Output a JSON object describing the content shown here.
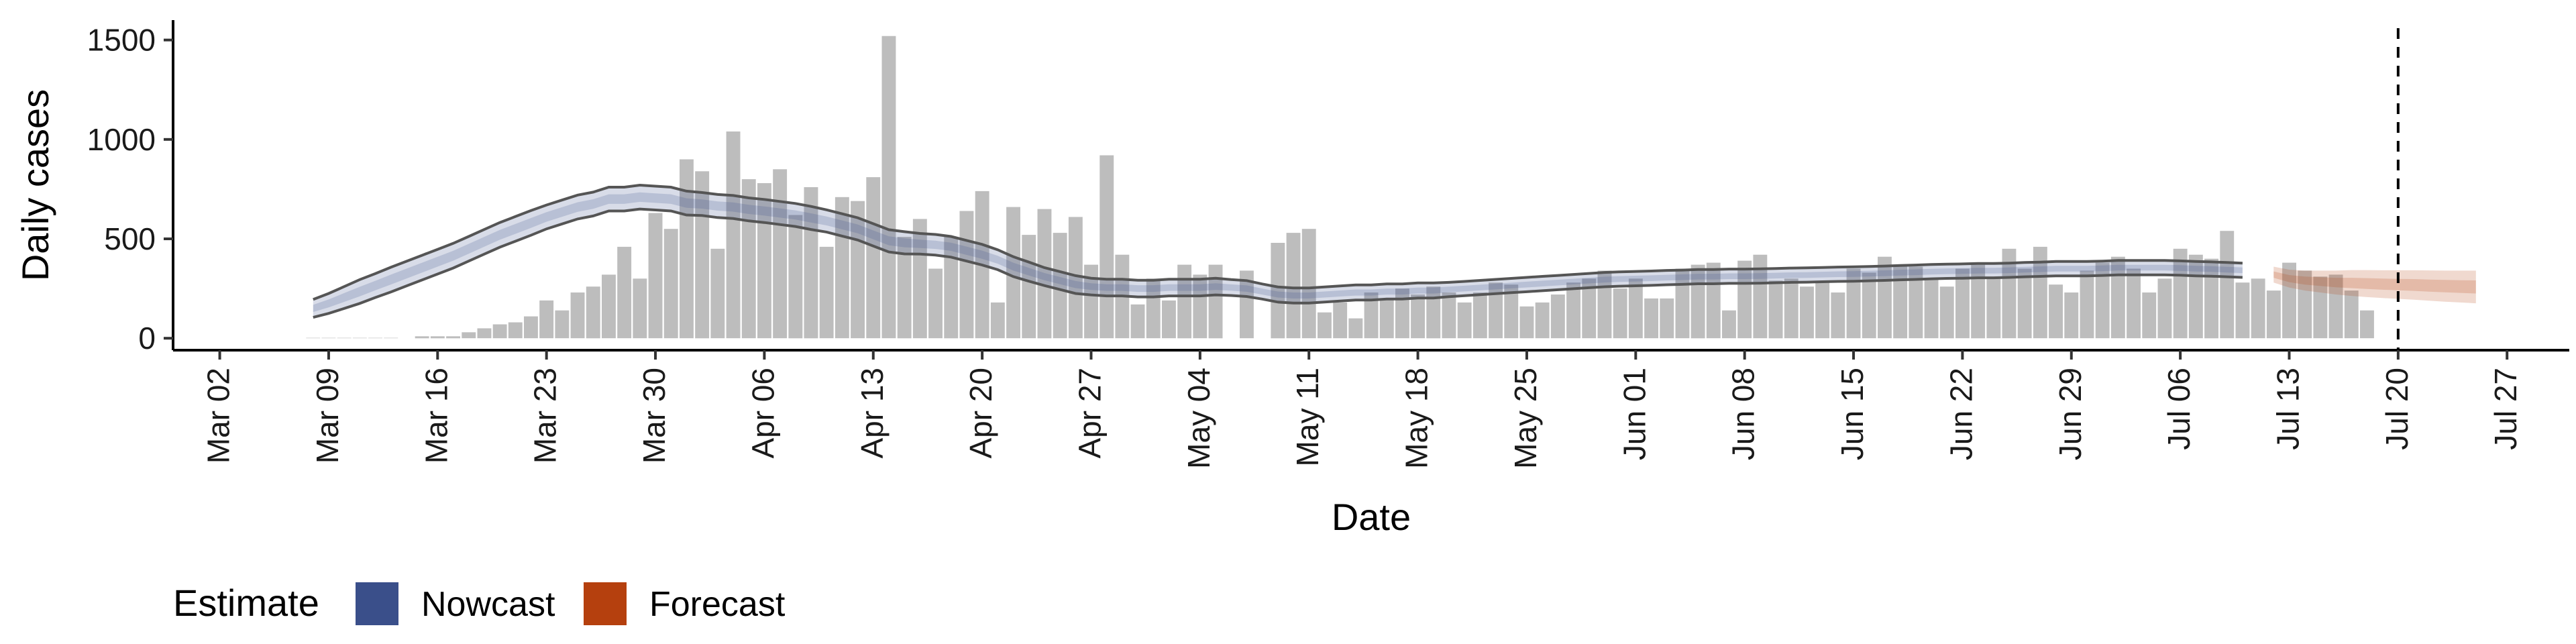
{
  "chart_data": {
    "type": "bar",
    "xlabel": "Date",
    "ylabel": "Daily cases",
    "x_range": [
      "2020-02-28",
      "2020-07-31"
    ],
    "ylim": [
      -60,
      1600
    ],
    "y_ticks": [
      0,
      500,
      1000,
      1500
    ],
    "x_ticks": [
      {
        "date": "2020-03-02",
        "label": "Mar 02"
      },
      {
        "date": "2020-03-09",
        "label": "Mar 09"
      },
      {
        "date": "2020-03-16",
        "label": "Mar 16"
      },
      {
        "date": "2020-03-23",
        "label": "Mar 23"
      },
      {
        "date": "2020-03-30",
        "label": "Mar 30"
      },
      {
        "date": "2020-04-06",
        "label": "Apr 06"
      },
      {
        "date": "2020-04-13",
        "label": "Apr 13"
      },
      {
        "date": "2020-04-20",
        "label": "Apr 20"
      },
      {
        "date": "2020-04-27",
        "label": "Apr 27"
      },
      {
        "date": "2020-05-04",
        "label": "May 04"
      },
      {
        "date": "2020-05-11",
        "label": "May 11"
      },
      {
        "date": "2020-05-18",
        "label": "May 18"
      },
      {
        "date": "2020-05-25",
        "label": "May 25"
      },
      {
        "date": "2020-06-01",
        "label": "Jun 01"
      },
      {
        "date": "2020-06-08",
        "label": "Jun 08"
      },
      {
        "date": "2020-06-15",
        "label": "Jun 15"
      },
      {
        "date": "2020-06-22",
        "label": "Jun 22"
      },
      {
        "date": "2020-06-29",
        "label": "Jun 29"
      },
      {
        "date": "2020-07-06",
        "label": "Jul 06"
      },
      {
        "date": "2020-07-13",
        "label": "Jul 13"
      },
      {
        "date": "2020-07-20",
        "label": "Jul 20"
      },
      {
        "date": "2020-07-27",
        "label": "Jul 27"
      }
    ],
    "observed_cases": {
      "start_date": "2020-03-08",
      "bar_color": "#bdbdbd",
      "values": [
        2,
        2,
        2,
        2,
        2,
        2,
        0,
        10,
        10,
        10,
        30,
        50,
        70,
        80,
        110,
        190,
        140,
        230,
        260,
        320,
        460,
        300,
        630,
        550,
        900,
        840,
        450,
        1040,
        800,
        780,
        850,
        620,
        760,
        460,
        710,
        690,
        810,
        1520,
        510,
        600,
        350,
        510,
        640,
        740,
        180,
        660,
        520,
        650,
        530,
        610,
        370,
        920,
        420,
        170,
        300,
        190,
        370,
        320,
        370,
        0,
        340,
        0,
        480,
        530,
        550,
        130,
        180,
        100,
        230,
        200,
        250,
        220,
        260,
        230,
        180,
        230,
        280,
        270,
        160,
        180,
        220,
        280,
        300,
        340,
        250,
        300,
        200,
        200,
        350,
        370,
        380,
        140,
        390,
        420,
        290,
        300,
        260,
        280,
        230,
        350,
        330,
        410,
        370,
        360,
        300,
        260,
        350,
        370,
        300,
        450,
        350,
        460,
        270,
        230,
        340,
        380,
        410,
        350,
        230,
        300,
        450,
        420,
        400,
        540,
        280,
        300,
        240,
        380,
        340,
        310,
        320,
        240,
        140
      ]
    },
    "series": [
      {
        "name": "Nowcast",
        "color": "#3a4f8a",
        "start_date": "2020-03-08",
        "median": [
          150,
          175,
          205,
          235,
          265,
          295,
          325,
          355,
          385,
          415,
          450,
          485,
          520,
          550,
          580,
          610,
          635,
          660,
          675,
          700,
          700,
          710,
          705,
          700,
          680,
          675,
          665,
          660,
          648,
          640,
          630,
          620,
          605,
          590,
          570,
          550,
          520,
          490,
          480,
          475,
          470,
          460,
          440,
          420,
          395,
          360,
          335,
          310,
          290,
          270,
          260,
          255,
          255,
          250,
          250,
          255,
          255,
          255,
          260,
          255,
          250,
          235,
          220,
          215,
          215,
          220,
          225,
          230,
          230,
          235,
          235,
          240,
          240,
          245,
          250,
          255,
          260,
          265,
          270,
          275,
          280,
          285,
          290,
          295,
          298,
          300,
          302,
          305,
          307,
          310,
          310,
          312,
          312,
          313,
          315,
          317,
          318,
          320,
          322,
          323,
          325,
          327,
          330,
          332,
          335,
          337,
          338,
          340,
          340,
          342,
          345,
          347,
          350,
          350,
          350,
          352,
          355,
          355,
          355,
          355,
          353,
          350,
          348,
          345,
          342
        ],
        "band_half_width": [
          45,
          50,
          55,
          60,
          60,
          62,
          62,
          62,
          62,
          62,
          62,
          62,
          62,
          62,
          62,
          60,
          60,
          60,
          60,
          60,
          60,
          60,
          60,
          60,
          60,
          58,
          58,
          58,
          58,
          58,
          58,
          58,
          58,
          56,
          56,
          56,
          56,
          56,
          56,
          52,
          52,
          52,
          52,
          52,
          50,
          50,
          48,
          45,
          45,
          45,
          42,
          42,
          42,
          42,
          42,
          42,
          42,
          42,
          42,
          40,
          40,
          38,
          38,
          38,
          38,
          38,
          38,
          38,
          38,
          38,
          38,
          38,
          38,
          36,
          36,
          36,
          36,
          36,
          36,
          36,
          36,
          36,
          36,
          36,
          36,
          36,
          36,
          36,
          36,
          36,
          36,
          36,
          36,
          36,
          36,
          36,
          36,
          36,
          36,
          36,
          36,
          36,
          36,
          36,
          36,
          36,
          36,
          36,
          36,
          36,
          36,
          36,
          36,
          36,
          36,
          36,
          36,
          36,
          36,
          36,
          36,
          36,
          36,
          36,
          36
        ]
      },
      {
        "name": "Forecast",
        "color": "#b5400e",
        "start_date": "2020-07-12",
        "median": [
          320,
          300,
          290,
          285,
          280,
          278,
          275,
          272,
          270,
          268,
          265,
          262,
          260,
          258
        ],
        "band_half_width": [
          40,
          45,
          50,
          55,
          60,
          65,
          68,
          70,
          72,
          74,
          76,
          78,
          80,
          82
        ]
      }
    ],
    "vline_date": "2020-07-20",
    "legend": {
      "title": "Estimate",
      "entries": [
        {
          "label": "Nowcast",
          "color": "#3a4f8a"
        },
        {
          "label": "Forecast",
          "color": "#b5400e"
        }
      ],
      "position": "bottom-left"
    }
  }
}
